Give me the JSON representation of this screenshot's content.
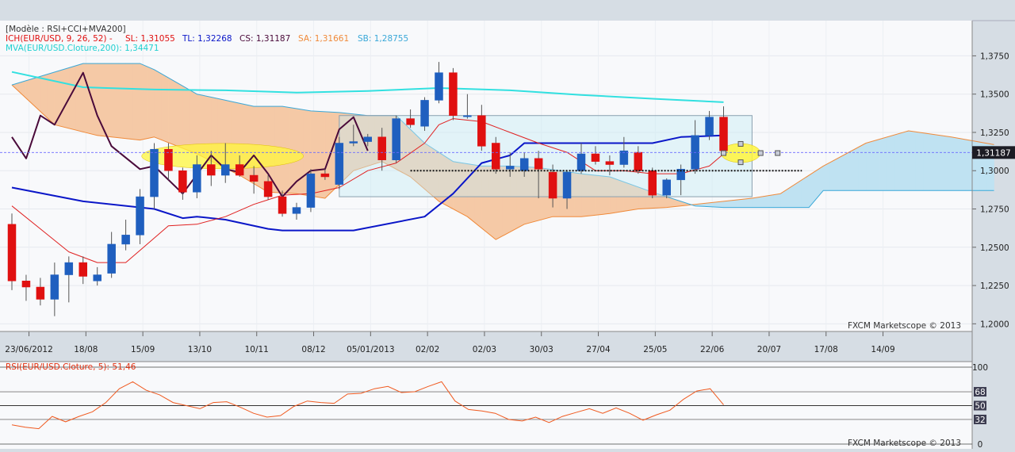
{
  "colors": {
    "background": "#d6dde4",
    "plot_bg": "#f8f9fb",
    "bull": "#1f5fbf",
    "bear": "#e01010",
    "tenkan": "#e02020",
    "kijun": "#0a16c8",
    "chikou": "#4a0a3a",
    "mva": "#32e0e0",
    "cloud_bear": "#f5c9a6",
    "cloud_bull": "#bfe2f2",
    "senkou_a": "#f08a3a",
    "senkou_b": "#3aa8d8",
    "rsi_line": "#f05a20"
  },
  "main_panel": {
    "legend": {
      "model": "[Modèle : RSI+CCI+MVA200]",
      "ich_name": "ICH(EUR/USD, 9, 26, 52) -",
      "sl": "SL: 1,31055",
      "tl": "TL: 1,32268",
      "cs": "CS: 1,31187",
      "sa": "SA: 1,31661",
      "sb": "SB: 1,28755",
      "mva": "MVA(EUR/USD.Cloture,200): 1,34471"
    },
    "price_tag": "1,31187",
    "watermark": "FXCM Marketscope © 2013"
  },
  "rsi_panel": {
    "title": "RSI(EUR/USD.Cloture, 5): 51,46",
    "levels": [
      "100",
      "68",
      "50",
      "32",
      "0"
    ],
    "watermark": "FXCM Marketscope © 2013"
  },
  "chart_data": [
    {
      "type": "candlestick",
      "instrument": "EUR/USD",
      "y_ticks": [
        "1,3750",
        "1,3500",
        "1,3250",
        "1,3000",
        "1,2750",
        "1,2500",
        "1,2250",
        "1,2000"
      ],
      "ylim": [
        1.195,
        1.398
      ],
      "x_ticks": [
        "23/06/2012",
        "18/08",
        "15/09",
        "13/10",
        "10/11",
        "08/12",
        "05/01/2013",
        "02/02",
        "02/03",
        "30/03",
        "27/04",
        "25/05",
        "22/06",
        "20/07",
        "17/08",
        "14/09"
      ],
      "candles": [
        {
          "o": 1.265,
          "h": 1.272,
          "l": 1.222,
          "c": 1.228
        },
        {
          "o": 1.228,
          "h": 1.232,
          "l": 1.215,
          "c": 1.224
        },
        {
          "o": 1.224,
          "h": 1.23,
          "l": 1.212,
          "c": 1.216
        },
        {
          "o": 1.216,
          "h": 1.24,
          "l": 1.205,
          "c": 1.232
        },
        {
          "o": 1.232,
          "h": 1.244,
          "l": 1.214,
          "c": 1.24
        },
        {
          "o": 1.24,
          "h": 1.244,
          "l": 1.226,
          "c": 1.231
        },
        {
          "o": 1.228,
          "h": 1.237,
          "l": 1.225,
          "c": 1.232
        },
        {
          "o": 1.233,
          "h": 1.26,
          "l": 1.23,
          "c": 1.252
        },
        {
          "o": 1.252,
          "h": 1.268,
          "l": 1.248,
          "c": 1.258
        },
        {
          "o": 1.258,
          "h": 1.288,
          "l": 1.252,
          "c": 1.283
        },
        {
          "o": 1.283,
          "h": 1.318,
          "l": 1.275,
          "c": 1.314
        },
        {
          "o": 1.314,
          "h": 1.318,
          "l": 1.294,
          "c": 1.3
        },
        {
          "o": 1.3,
          "h": 1.302,
          "l": 1.281,
          "c": 1.286
        },
        {
          "o": 1.286,
          "h": 1.31,
          "l": 1.282,
          "c": 1.304
        },
        {
          "o": 1.304,
          "h": 1.313,
          "l": 1.29,
          "c": 1.297
        },
        {
          "o": 1.297,
          "h": 1.318,
          "l": 1.292,
          "c": 1.304
        },
        {
          "o": 1.304,
          "h": 1.31,
          "l": 1.296,
          "c": 1.297
        },
        {
          "o": 1.297,
          "h": 1.303,
          "l": 1.285,
          "c": 1.293
        },
        {
          "o": 1.293,
          "h": 1.297,
          "l": 1.281,
          "c": 1.283
        },
        {
          "o": 1.283,
          "h": 1.287,
          "l": 1.27,
          "c": 1.272
        },
        {
          "o": 1.272,
          "h": 1.279,
          "l": 1.268,
          "c": 1.276
        },
        {
          "o": 1.276,
          "h": 1.301,
          "l": 1.273,
          "c": 1.298
        },
        {
          "o": 1.298,
          "h": 1.301,
          "l": 1.294,
          "c": 1.296
        },
        {
          "o": 1.291,
          "h": 1.322,
          "l": 1.288,
          "c": 1.318
        },
        {
          "o": 1.318,
          "h": 1.33,
          "l": 1.316,
          "c": 1.319
        },
        {
          "o": 1.319,
          "h": 1.324,
          "l": 1.316,
          "c": 1.322
        },
        {
          "o": 1.322,
          "h": 1.328,
          "l": 1.3,
          "c": 1.307
        },
        {
          "o": 1.307,
          "h": 1.336,
          "l": 1.305,
          "c": 1.334
        },
        {
          "o": 1.334,
          "h": 1.34,
          "l": 1.328,
          "c": 1.33
        },
        {
          "o": 1.329,
          "h": 1.348,
          "l": 1.326,
          "c": 1.346
        },
        {
          "o": 1.346,
          "h": 1.371,
          "l": 1.344,
          "c": 1.364
        },
        {
          "o": 1.364,
          "h": 1.367,
          "l": 1.333,
          "c": 1.336
        },
        {
          "o": 1.336,
          "h": 1.35,
          "l": 1.334,
          "c": 1.336
        },
        {
          "o": 1.336,
          "h": 1.343,
          "l": 1.313,
          "c": 1.316
        },
        {
          "o": 1.318,
          "h": 1.322,
          "l": 1.298,
          "c": 1.301
        },
        {
          "o": 1.301,
          "h": 1.312,
          "l": 1.296,
          "c": 1.303
        },
        {
          "o": 1.3,
          "h": 1.312,
          "l": 1.296,
          "c": 1.308
        },
        {
          "o": 1.308,
          "h": 1.313,
          "l": 1.282,
          "c": 1.301
        },
        {
          "o": 1.299,
          "h": 1.304,
          "l": 1.276,
          "c": 1.282
        },
        {
          "o": 1.282,
          "h": 1.3,
          "l": 1.275,
          "c": 1.299
        },
        {
          "o": 1.3,
          "h": 1.318,
          "l": 1.298,
          "c": 1.311
        },
        {
          "o": 1.311,
          "h": 1.316,
          "l": 1.304,
          "c": 1.306
        },
        {
          "o": 1.306,
          "h": 1.31,
          "l": 1.297,
          "c": 1.304
        },
        {
          "o": 1.304,
          "h": 1.322,
          "l": 1.302,
          "c": 1.313
        },
        {
          "o": 1.312,
          "h": 1.316,
          "l": 1.298,
          "c": 1.3
        },
        {
          "o": 1.3,
          "h": 1.302,
          "l": 1.282,
          "c": 1.284
        },
        {
          "o": 1.284,
          "h": 1.295,
          "l": 1.282,
          "c": 1.294
        },
        {
          "o": 1.294,
          "h": 1.304,
          "l": 1.284,
          "c": 1.301
        },
        {
          "o": 1.301,
          "h": 1.333,
          "l": 1.298,
          "c": 1.323
        },
        {
          "o": 1.323,
          "h": 1.339,
          "l": 1.32,
          "c": 1.335
        },
        {
          "o": 1.335,
          "h": 1.342,
          "l": 1.31,
          "c": 1.313
        }
      ],
      "tenkan_sen": [
        [
          0,
          1.277
        ],
        [
          2,
          1.262
        ],
        [
          4,
          1.247
        ],
        [
          6,
          1.24
        ],
        [
          8,
          1.24
        ],
        [
          9,
          1.248
        ],
        [
          11,
          1.264
        ],
        [
          13,
          1.265
        ],
        [
          15,
          1.27
        ],
        [
          17,
          1.278
        ],
        [
          19,
          1.284
        ],
        [
          21,
          1.285
        ],
        [
          23,
          1.289
        ],
        [
          25,
          1.3
        ],
        [
          27,
          1.305
        ],
        [
          29,
          1.318
        ],
        [
          30,
          1.33
        ],
        [
          31,
          1.334
        ],
        [
          33,
          1.332
        ],
        [
          35,
          1.325
        ],
        [
          37,
          1.318
        ],
        [
          39,
          1.312
        ],
        [
          41,
          1.3
        ],
        [
          43,
          1.3
        ],
        [
          45,
          1.298
        ],
        [
          47,
          1.298
        ],
        [
          49,
          1.303
        ],
        [
          50,
          1.311
        ]
      ],
      "kijun_sen": [
        [
          0,
          1.289
        ],
        [
          5,
          1.28
        ],
        [
          10,
          1.275
        ],
        [
          12,
          1.269
        ],
        [
          13,
          1.27
        ],
        [
          15,
          1.268
        ],
        [
          18,
          1.262
        ],
        [
          19,
          1.261
        ],
        [
          23,
          1.261
        ],
        [
          24,
          1.261
        ],
        [
          29,
          1.27
        ],
        [
          31,
          1.285
        ],
        [
          33,
          1.305
        ],
        [
          35,
          1.31
        ],
        [
          36,
          1.318
        ],
        [
          41,
          1.318
        ],
        [
          45,
          1.318
        ],
        [
          47,
          1.322
        ],
        [
          50,
          1.323
        ]
      ],
      "chikou_span": [
        [
          0,
          1.322
        ],
        [
          1,
          1.308
        ],
        [
          2,
          1.336
        ],
        [
          3,
          1.33
        ],
        [
          5,
          1.364
        ],
        [
          6,
          1.336
        ],
        [
          7,
          1.316
        ],
        [
          9,
          1.301
        ],
        [
          10,
          1.303
        ],
        [
          12,
          1.285
        ],
        [
          14,
          1.31
        ],
        [
          15,
          1.301
        ],
        [
          16,
          1.299
        ],
        [
          17,
          1.31
        ],
        [
          18,
          1.298
        ],
        [
          19,
          1.283
        ],
        [
          20,
          1.293
        ],
        [
          21,
          1.3
        ],
        [
          22,
          1.301
        ],
        [
          23,
          1.327
        ],
        [
          24,
          1.335
        ],
        [
          25,
          1.313
        ]
      ],
      "senkou_a": [
        [
          0,
          1.356
        ],
        [
          3,
          1.33
        ],
        [
          6,
          1.323
        ],
        [
          9,
          1.32
        ],
        [
          10,
          1.322
        ],
        [
          13,
          1.311
        ],
        [
          16,
          1.297
        ],
        [
          18,
          1.286
        ],
        [
          20,
          1.285
        ],
        [
          22,
          1.282
        ],
        [
          24,
          1.3
        ],
        [
          26,
          1.306
        ],
        [
          28,
          1.296
        ],
        [
          30,
          1.28
        ],
        [
          32,
          1.27
        ],
        [
          34,
          1.255
        ],
        [
          36,
          1.265
        ],
        [
          38,
          1.27
        ],
        [
          40,
          1.27
        ],
        [
          42,
          1.272
        ],
        [
          44,
          1.275
        ],
        [
          46,
          1.276
        ],
        [
          48,
          1.278
        ],
        [
          50,
          1.28
        ],
        [
          52,
          1.282
        ],
        [
          54,
          1.285
        ],
        [
          57,
          1.303
        ],
        [
          60,
          1.318
        ],
        [
          63,
          1.326
        ],
        [
          66,
          1.322
        ],
        [
          69,
          1.317
        ]
      ],
      "senkou_b": [
        [
          0,
          1.356
        ],
        [
          5,
          1.37
        ],
        [
          9,
          1.37
        ],
        [
          10,
          1.366
        ],
        [
          13,
          1.35
        ],
        [
          15,
          1.346
        ],
        [
          17,
          1.342
        ],
        [
          19,
          1.342
        ],
        [
          21,
          1.339
        ],
        [
          23,
          1.338
        ],
        [
          25,
          1.336
        ],
        [
          27,
          1.336
        ],
        [
          29,
          1.318
        ],
        [
          31,
          1.306
        ],
        [
          33,
          1.303
        ],
        [
          35,
          1.303
        ],
        [
          37,
          1.302
        ],
        [
          40,
          1.298
        ],
        [
          42,
          1.296
        ],
        [
          45,
          1.286
        ],
        [
          48,
          1.277
        ],
        [
          50,
          1.276
        ],
        [
          52,
          1.276
        ],
        [
          54,
          1.276
        ],
        [
          56,
          1.276
        ],
        [
          57,
          1.287
        ],
        [
          59,
          1.287
        ],
        [
          69,
          1.287
        ]
      ],
      "mva200": [
        [
          0,
          1.3645
        ],
        [
          5,
          1.3545
        ],
        [
          10,
          1.353
        ],
        [
          15,
          1.3525
        ],
        [
          20,
          1.351
        ],
        [
          25,
          1.352
        ],
        [
          30,
          1.354
        ],
        [
          35,
          1.3525
        ],
        [
          40,
          1.3495
        ],
        [
          45,
          1.347
        ],
        [
          50,
          1.3447
        ]
      ],
      "current_price": 1.31187,
      "support_level": 1.3,
      "annotation_box": {
        "x_start": 23,
        "x_end": 52,
        "y_low": 1.283,
        "y_high": 1.336
      }
    },
    {
      "type": "line",
      "title": "RSI(EUR/USD.Cloture, 5): 51,46",
      "ylim": [
        0,
        100
      ],
      "y_ticks": [
        100,
        68,
        50,
        32,
        0
      ],
      "values": [
        25,
        22,
        20,
        36,
        29,
        36,
        42,
        54,
        72,
        81,
        70,
        64,
        54,
        50,
        46,
        54,
        55,
        48,
        40,
        35,
        37,
        49,
        56,
        54,
        53,
        65,
        66,
        72,
        75,
        67,
        68,
        75,
        81,
        56,
        45,
        43,
        40,
        32,
        30,
        35,
        28,
        36,
        41,
        46,
        40,
        47,
        40,
        31,
        38,
        44,
        58,
        69,
        72,
        51
      ]
    }
  ]
}
